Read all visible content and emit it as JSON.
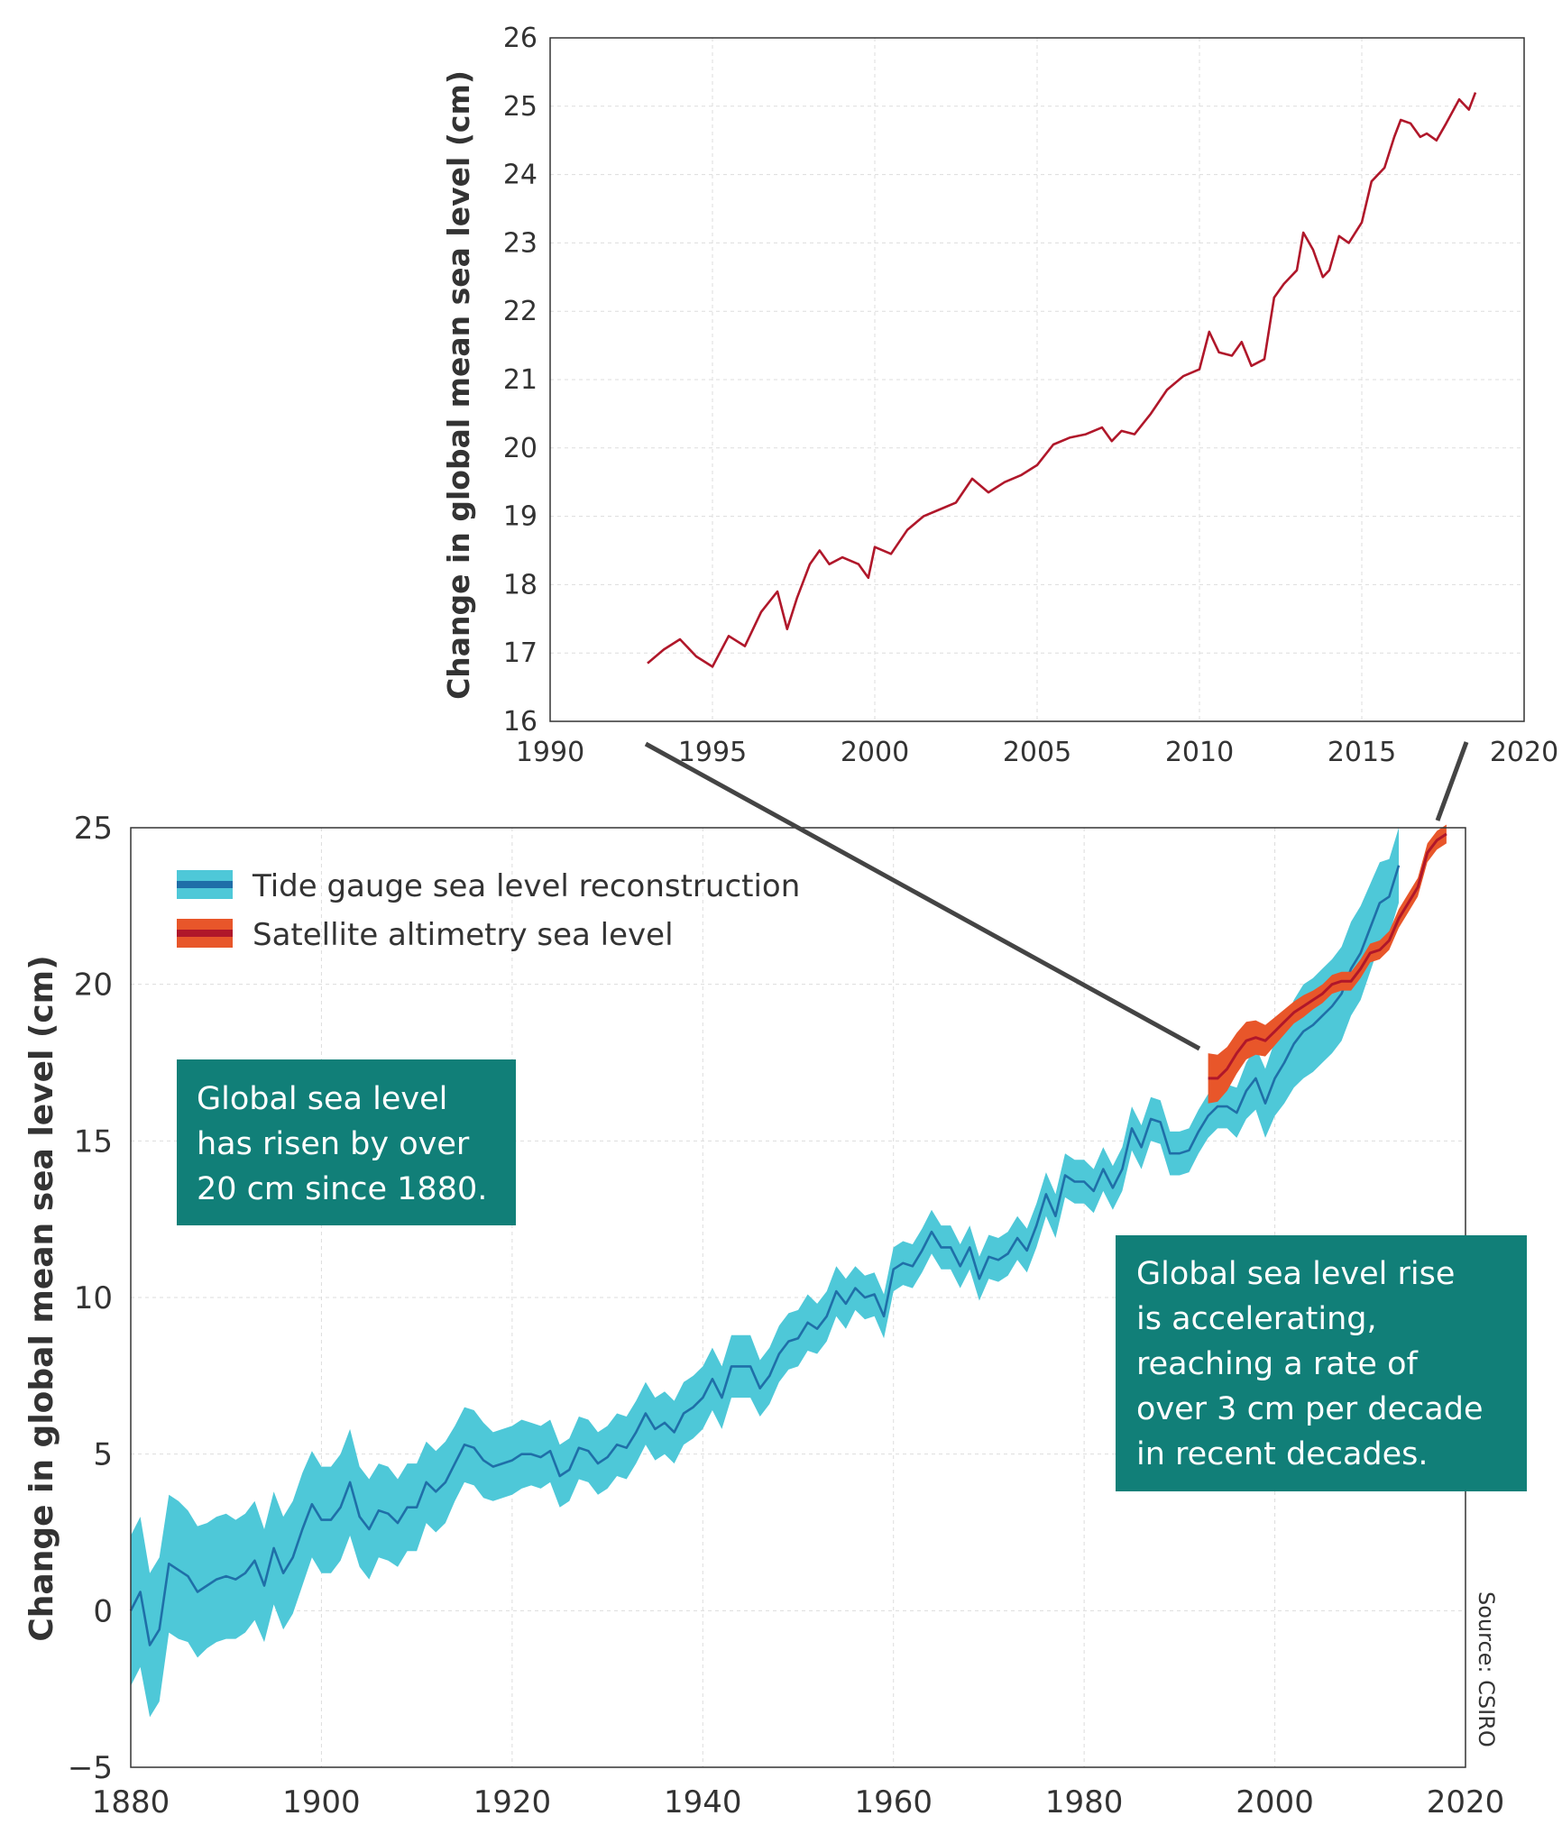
{
  "colors": {
    "tide_band": "#4ec8d8",
    "tide_line": "#1f6fa8",
    "sat_band": "#e8562a",
    "sat_line": "#b0172a",
    "callout_bg": "#117f78",
    "grid": "#dddddd",
    "axis": "#333333",
    "connector": "#444444"
  },
  "source": "Source: CSIRO",
  "callouts": {
    "left": [
      "Global sea level",
      "has risen by over",
      "20 cm since 1880."
    ],
    "right": [
      "Global sea level rise",
      "is accelerating,",
      "reaching a rate of",
      "over 3 cm per decade",
      "in recent decades."
    ]
  },
  "chart_data": [
    {
      "type": "line",
      "title": "",
      "xlabel": "",
      "ylabel": "Change in global mean sea level (cm)",
      "xlim": [
        1990,
        2020
      ],
      "ylim": [
        16,
        26
      ],
      "xticks": [
        "1990",
        "1995",
        "2000",
        "2005",
        "2010",
        "2015",
        "2020"
      ],
      "yticks": [
        "16",
        "17",
        "18",
        "19",
        "20",
        "21",
        "22",
        "23",
        "24",
        "25",
        "26"
      ],
      "grid": true,
      "series": [
        {
          "name": "",
          "points": [
            [
              1993.0,
              16.85
            ],
            [
              1993.5,
              17.05
            ],
            [
              1994.0,
              17.2
            ],
            [
              1994.5,
              16.95
            ],
            [
              1995.0,
              16.8
            ],
            [
              1995.5,
              17.25
            ],
            [
              1996.0,
              17.1
            ],
            [
              1996.5,
              17.6
            ],
            [
              1997.0,
              17.9
            ],
            [
              1997.3,
              17.35
            ],
            [
              1997.6,
              17.8
            ],
            [
              1998.0,
              18.3
            ],
            [
              1998.3,
              18.5
            ],
            [
              1998.6,
              18.3
            ],
            [
              1999.0,
              18.4
            ],
            [
              1999.5,
              18.3
            ],
            [
              1999.8,
              18.1
            ],
            [
              2000.0,
              18.55
            ],
            [
              2000.5,
              18.45
            ],
            [
              2001.0,
              18.8
            ],
            [
              2001.5,
              19.0
            ],
            [
              2002.0,
              19.1
            ],
            [
              2002.5,
              19.2
            ],
            [
              2003.0,
              19.55
            ],
            [
              2003.5,
              19.35
            ],
            [
              2004.0,
              19.5
            ],
            [
              2004.5,
              19.6
            ],
            [
              2005.0,
              19.75
            ],
            [
              2005.5,
              20.05
            ],
            [
              2006.0,
              20.15
            ],
            [
              2006.5,
              20.2
            ],
            [
              2007.0,
              20.3
            ],
            [
              2007.3,
              20.1
            ],
            [
              2007.6,
              20.25
            ],
            [
              2008.0,
              20.2
            ],
            [
              2008.5,
              20.5
            ],
            [
              2009.0,
              20.85
            ],
            [
              2009.5,
              21.05
            ],
            [
              2010.0,
              21.15
            ],
            [
              2010.3,
              21.7
            ],
            [
              2010.6,
              21.4
            ],
            [
              2011.0,
              21.35
            ],
            [
              2011.3,
              21.55
            ],
            [
              2011.6,
              21.2
            ],
            [
              2012.0,
              21.3
            ],
            [
              2012.3,
              22.2
            ],
            [
              2012.6,
              22.4
            ],
            [
              2013.0,
              22.6
            ],
            [
              2013.2,
              23.15
            ],
            [
              2013.5,
              22.9
            ],
            [
              2013.8,
              22.5
            ],
            [
              2014.0,
              22.6
            ],
            [
              2014.3,
              23.1
            ],
            [
              2014.6,
              23.0
            ],
            [
              2015.0,
              23.3
            ],
            [
              2015.3,
              23.9
            ],
            [
              2015.7,
              24.1
            ],
            [
              2016.0,
              24.55
            ],
            [
              2016.2,
              24.8
            ],
            [
              2016.5,
              24.75
            ],
            [
              2016.8,
              24.55
            ],
            [
              2017.0,
              24.6
            ],
            [
              2017.3,
              24.5
            ],
            [
              2017.6,
              24.75
            ],
            [
              2018.0,
              25.1
            ],
            [
              2018.3,
              24.95
            ],
            [
              2018.5,
              25.2
            ]
          ]
        }
      ]
    },
    {
      "type": "area",
      "title": "",
      "xlabel": "",
      "ylabel": "Change in global mean sea level (cm)",
      "xlim": [
        1880,
        2020
      ],
      "ylim": [
        -5,
        25
      ],
      "xticks": [
        "1880",
        "1900",
        "1920",
        "1940",
        "1960",
        "1980",
        "2000",
        "2020"
      ],
      "yticks": [
        "−5",
        "0",
        "5",
        "10",
        "15",
        "20",
        "25"
      ],
      "grid": true,
      "legend": "top-left",
      "series": [
        {
          "name": "Tide gauge sea level reconstruction",
          "x": [
            1880,
            1881,
            1882,
            1883,
            1884,
            1885,
            1886,
            1887,
            1888,
            1889,
            1890,
            1891,
            1892,
            1893,
            1894,
            1895,
            1896,
            1897,
            1898,
            1899,
            1900,
            1901,
            1902,
            1903,
            1904,
            1905,
            1906,
            1907,
            1908,
            1909,
            1910,
            1911,
            1912,
            1913,
            1914,
            1915,
            1916,
            1917,
            1918,
            1919,
            1920,
            1921,
            1922,
            1923,
            1924,
            1925,
            1926,
            1927,
            1928,
            1929,
            1930,
            1931,
            1932,
            1933,
            1934,
            1935,
            1936,
            1937,
            1938,
            1939,
            1940,
            1941,
            1942,
            1943,
            1944,
            1945,
            1946,
            1947,
            1948,
            1949,
            1950,
            1951,
            1952,
            1953,
            1954,
            1955,
            1956,
            1957,
            1958,
            1959,
            1960,
            1961,
            1962,
            1963,
            1964,
            1965,
            1966,
            1967,
            1968,
            1969,
            1970,
            1971,
            1972,
            1973,
            1974,
            1975,
            1976,
            1977,
            1978,
            1979,
            1980,
            1981,
            1982,
            1983,
            1984,
            1985,
            1986,
            1987,
            1988,
            1989,
            1990,
            1991,
            1992,
            1993,
            1994,
            1995,
            1996,
            1997,
            1998,
            1999,
            2000,
            2001,
            2002,
            2003,
            2004,
            2005,
            2006,
            2007,
            2008,
            2009,
            2010,
            2011,
            2012,
            2013
          ],
          "y": [
            0.0,
            0.6,
            -1.1,
            -0.6,
            1.5,
            1.3,
            1.1,
            0.6,
            0.8,
            1.0,
            1.1,
            1.0,
            1.2,
            1.6,
            0.8,
            2.0,
            1.2,
            1.7,
            2.6,
            3.4,
            2.9,
            2.9,
            3.3,
            4.1,
            3.0,
            2.6,
            3.2,
            3.1,
            2.8,
            3.3,
            3.3,
            4.1,
            3.8,
            4.1,
            4.7,
            5.3,
            5.2,
            4.8,
            4.6,
            4.7,
            4.8,
            5.0,
            5.0,
            4.9,
            5.1,
            4.3,
            4.5,
            5.2,
            5.1,
            4.7,
            4.9,
            5.3,
            5.2,
            5.7,
            6.3,
            5.8,
            6.0,
            5.7,
            6.3,
            6.5,
            6.8,
            7.4,
            6.8,
            7.8,
            7.8,
            7.8,
            7.1,
            7.5,
            8.2,
            8.6,
            8.7,
            9.2,
            9.0,
            9.4,
            10.2,
            9.8,
            10.3,
            10.0,
            10.1,
            9.4,
            10.9,
            11.1,
            11.0,
            11.5,
            12.1,
            11.6,
            11.6,
            11.0,
            11.6,
            10.6,
            11.3,
            11.2,
            11.4,
            11.9,
            11.5,
            12.3,
            13.3,
            12.6,
            13.9,
            13.7,
            13.7,
            13.4,
            14.1,
            13.5,
            14.1,
            15.4,
            14.8,
            15.7,
            15.6,
            14.6,
            14.6,
            14.7,
            15.3,
            15.8,
            16.1,
            16.1,
            15.9,
            16.6,
            17.0,
            16.2,
            17.0,
            17.5,
            18.1,
            18.5,
            18.7,
            19.0,
            19.3,
            19.7,
            20.5,
            21.0,
            21.8,
            22.6,
            22.8,
            23.8
          ],
          "uncertainty": [
            2.4,
            2.4,
            2.3,
            2.3,
            2.2,
            2.2,
            2.1,
            2.1,
            2.0,
            2.0,
            2.0,
            1.9,
            1.9,
            1.9,
            1.8,
            1.8,
            1.8,
            1.8,
            1.8,
            1.7,
            1.7,
            1.7,
            1.7,
            1.7,
            1.6,
            1.6,
            1.5,
            1.5,
            1.4,
            1.4,
            1.4,
            1.3,
            1.3,
            1.3,
            1.2,
            1.2,
            1.2,
            1.2,
            1.1,
            1.1,
            1.1,
            1.1,
            1.0,
            1.0,
            1.0,
            1.0,
            1.0,
            1.0,
            1.0,
            1.0,
            1.0,
            1.0,
            1.0,
            1.0,
            1.0,
            1.0,
            1.0,
            1.0,
            1.0,
            1.0,
            1.0,
            1.0,
            1.0,
            1.0,
            1.0,
            1.0,
            0.9,
            0.9,
            0.9,
            0.9,
            0.9,
            0.9,
            0.8,
            0.8,
            0.8,
            0.8,
            0.7,
            0.7,
            0.7,
            0.7,
            0.7,
            0.7,
            0.7,
            0.7,
            0.7,
            0.7,
            0.7,
            0.7,
            0.7,
            0.7,
            0.7,
            0.7,
            0.7,
            0.7,
            0.7,
            0.7,
            0.7,
            0.7,
            0.7,
            0.7,
            0.7,
            0.7,
            0.7,
            0.7,
            0.7,
            0.7,
            0.7,
            0.7,
            0.7,
            0.7,
            0.7,
            0.7,
            0.7,
            0.7,
            0.7,
            0.7,
            0.8,
            0.9,
            1.0,
            1.1,
            1.2,
            1.3,
            1.4,
            1.5,
            1.5,
            1.5,
            1.5,
            1.5,
            1.5,
            1.5,
            1.4,
            1.3,
            1.2,
            1.2
          ]
        },
        {
          "name": "Satellite altimetry sea level",
          "x": [
            1993,
            1994,
            1995,
            1996,
            1997,
            1998,
            1999,
            2000,
            2001,
            2002,
            2003,
            2004,
            2005,
            2006,
            2007,
            2008,
            2009,
            2010,
            2011,
            2012,
            2013,
            2014,
            2015,
            2016,
            2017,
            2018
          ],
          "y": [
            17.0,
            17.0,
            17.3,
            17.8,
            18.2,
            18.3,
            18.2,
            18.5,
            18.8,
            19.1,
            19.3,
            19.5,
            19.7,
            20.0,
            20.1,
            20.1,
            20.5,
            21.0,
            21.1,
            21.4,
            22.1,
            22.6,
            23.1,
            24.2,
            24.6,
            24.8
          ],
          "uncertainty": [
            0.8,
            0.75,
            0.7,
            0.65,
            0.6,
            0.55,
            0.5,
            0.45,
            0.4,
            0.35,
            0.35,
            0.3,
            0.3,
            0.3,
            0.3,
            0.3,
            0.3,
            0.3,
            0.3,
            0.3,
            0.3,
            0.3,
            0.3,
            0.3,
            0.3,
            0.3
          ]
        }
      ]
    }
  ]
}
